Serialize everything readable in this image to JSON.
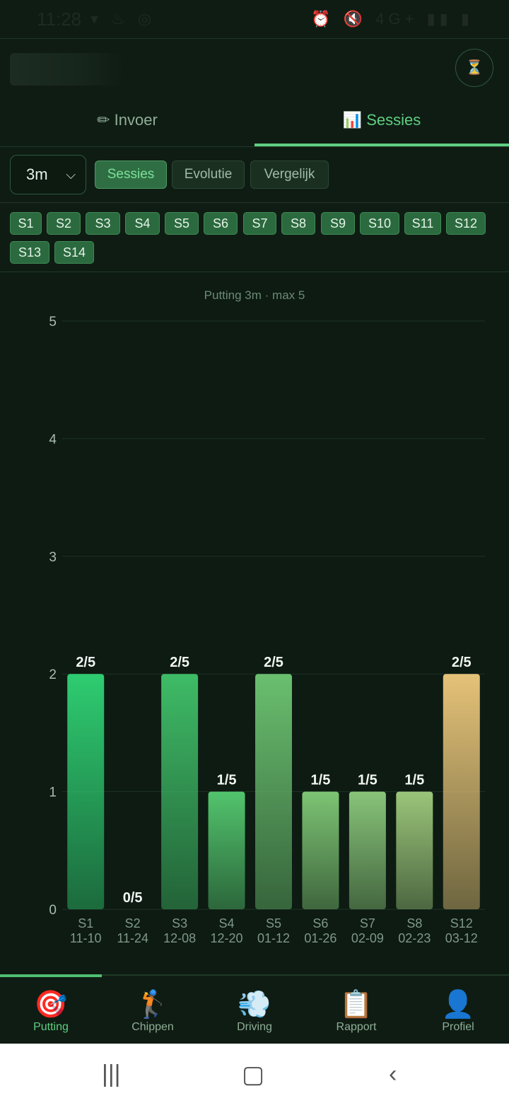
{
  "status": {
    "time": "11:28",
    "left_icons": "▾ ♨ ◎",
    "right_icons": "⏰ 🔇 4G+ ▮▮ ▮"
  },
  "header": {
    "button_icon": "⏳"
  },
  "tabs": {
    "invoer": "✏ Invoer",
    "sessies": "📊 Sessies"
  },
  "controls": {
    "distance": "3m",
    "views": [
      "Sessies",
      "Evolutie",
      "Vergelijk"
    ]
  },
  "sessions": [
    "S1",
    "S2",
    "S3",
    "S4",
    "S5",
    "S6",
    "S7",
    "S8",
    "S9",
    "S10",
    "S11",
    "S12",
    "S13",
    "S14"
  ],
  "chart_data": {
    "type": "bar",
    "title": "Putting 3m · max 5",
    "categories": [
      "S1",
      "S2",
      "S3",
      "S4",
      "S5",
      "S6",
      "S7",
      "S8",
      "S12"
    ],
    "dates": [
      "11-10",
      "11-24",
      "12-08",
      "12-20",
      "01-12",
      "01-26",
      "02-09",
      "02-23",
      "03-12"
    ],
    "values": [
      2,
      0,
      2,
      1,
      2,
      1,
      1,
      1,
      2
    ],
    "labels": [
      "2/5",
      "0/5",
      "2/5",
      "1/5",
      "2/5",
      "1/5",
      "1/5",
      "1/5",
      "2/5"
    ],
    "ylim": [
      0,
      5
    ],
    "yticks": [
      0,
      1,
      2,
      3,
      4,
      5
    ],
    "bar_colors": [
      "#2ecc71",
      "#2bb866",
      "#3ebb66",
      "#52c46d",
      "#6abf6f",
      "#7dc474",
      "#88c479",
      "#9bc57a",
      "#e5c278"
    ],
    "grid": true
  },
  "nav": [
    {
      "icon": "🎯",
      "label": "Putting"
    },
    {
      "icon": "🏌",
      "label": "Chippen"
    },
    {
      "icon": "💨",
      "label": "Driving"
    },
    {
      "icon": "📋",
      "label": "Rapport"
    },
    {
      "icon": "👤",
      "label": "Profiel"
    }
  ]
}
